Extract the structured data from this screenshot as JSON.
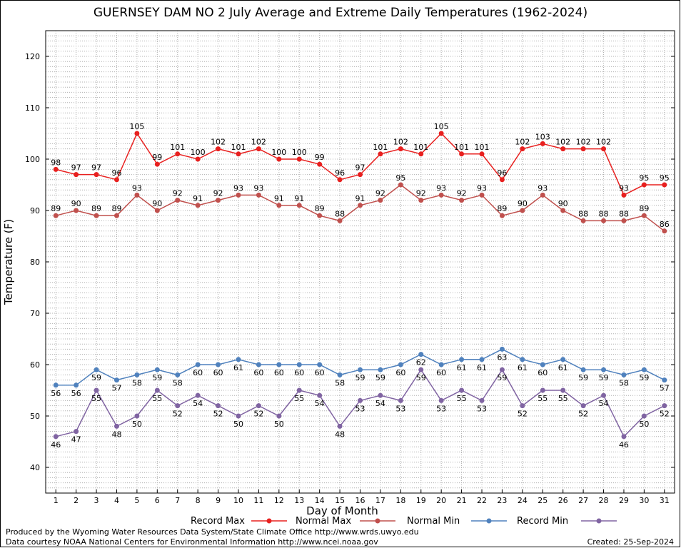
{
  "chart_data": {
    "type": "line",
    "title": "GUERNSEY DAM NO 2 July Average and Extreme Daily Temperatures (1962-2024)",
    "xlabel": "Day of Month",
    "ylabel": "Temperature (F)",
    "x": [
      1,
      2,
      3,
      4,
      5,
      6,
      7,
      8,
      9,
      10,
      11,
      12,
      13,
      14,
      15,
      16,
      17,
      18,
      19,
      20,
      21,
      22,
      23,
      24,
      25,
      26,
      27,
      28,
      29,
      30,
      31
    ],
    "xlim": [
      0.5,
      31.5
    ],
    "ylim": [
      35,
      125
    ],
    "y_ticks": [
      40,
      50,
      60,
      70,
      80,
      90,
      100,
      110,
      120
    ],
    "grid": true,
    "legend_position": "bottom",
    "series": [
      {
        "name": "Record Max",
        "color": "#e8201f",
        "values": [
          98,
          97,
          97,
          96,
          105,
          99,
          101,
          100,
          102,
          101,
          102,
          100,
          100,
          99,
          96,
          97,
          101,
          102,
          101,
          105,
          101,
          101,
          96,
          102,
          103,
          102,
          102,
          102,
          93,
          95,
          95
        ]
      },
      {
        "name": "Normal Max",
        "color": "#c0504d",
        "values": [
          89,
          90,
          89,
          89,
          93,
          90,
          92,
          91,
          92,
          93,
          93,
          91,
          91,
          89,
          88,
          91,
          92,
          95,
          92,
          93,
          92,
          93,
          89,
          90,
          93,
          90,
          88,
          88,
          88,
          89,
          86
        ]
      },
      {
        "name": "Normal Min",
        "color": "#4f81bd",
        "values": [
          56,
          56,
          59,
          57,
          58,
          59,
          58,
          60,
          60,
          61,
          60,
          60,
          60,
          60,
          58,
          59,
          59,
          60,
          62,
          60,
          61,
          61,
          63,
          61,
          60,
          61,
          59,
          59,
          58,
          59,
          57
        ]
      },
      {
        "name": "Record Min",
        "color": "#8064a2",
        "values": [
          46,
          47,
          55,
          48,
          50,
          55,
          52,
          54,
          52,
          50,
          52,
          50,
          55,
          54,
          48,
          53,
          54,
          53,
          59,
          53,
          55,
          53,
          59,
          52,
          55,
          55,
          52,
          54,
          46,
          50,
          52
        ]
      }
    ]
  },
  "footer": {
    "produced_by": "Produced by the Wyoming Water Resources Data System/State Climate Office http://www.wrds.uwyo.edu",
    "data_courtesy": "Data courtesy NOAA National Centers for Environmental Information http://www.ncei.noaa.gov",
    "created": "Created:  25-Sep-2024"
  }
}
